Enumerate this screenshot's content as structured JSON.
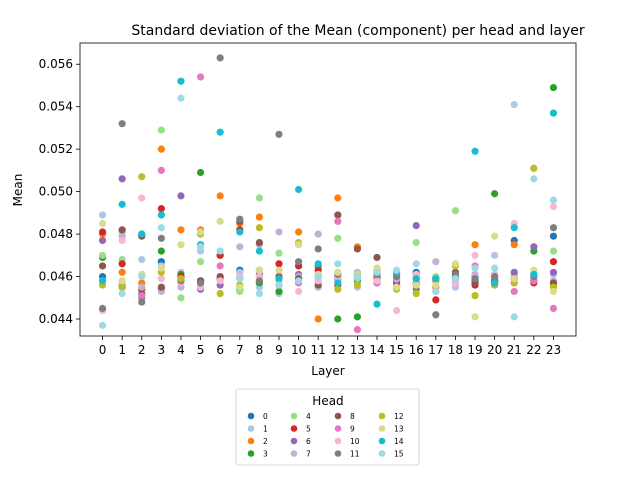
{
  "chart_data": {
    "type": "scatter",
    "title": "Standard deviation of the Mean (component) per head and layer",
    "xlabel": "Layer",
    "ylabel": "Mean",
    "x": [
      0,
      1,
      2,
      3,
      4,
      5,
      6,
      7,
      8,
      9,
      10,
      11,
      12,
      13,
      14,
      15,
      16,
      17,
      18,
      19,
      20,
      21,
      22,
      23
    ],
    "ylim": [
      0.0432,
      0.057
    ],
    "yticks": [
      0.044,
      0.046,
      0.048,
      0.05,
      0.052,
      0.054,
      0.056
    ],
    "ytick_labels": [
      "0.044",
      "0.046",
      "0.048",
      "0.050",
      "0.052",
      "0.054",
      "0.056"
    ],
    "grid": false,
    "legend": {
      "title": "Head",
      "placement": "below-center",
      "columns": 4
    },
    "series": [
      {
        "name": "0",
        "color": "#1f77b4",
        "values": [
          0.046,
          0.0455,
          0.048,
          0.0467,
          0.0458,
          0.0457,
          0.0459,
          0.0463,
          0.0457,
          0.0456,
          0.0459,
          0.0455,
          0.0459,
          0.0458,
          0.0459,
          0.0457,
          0.0462,
          0.0459,
          0.0459,
          0.0458,
          0.0457,
          0.0477,
          0.0461,
          0.0479
        ]
      },
      {
        "name": "1",
        "color": "#aec7e8",
        "values": [
          0.0489,
          0.0481,
          0.0468,
          0.0465,
          0.0462,
          0.0472,
          0.047,
          0.0462,
          0.0455,
          0.0452,
          0.0458,
          0.0455,
          0.0459,
          0.0455,
          0.0461,
          0.0456,
          0.0459,
          0.0453,
          0.0455,
          0.0461,
          0.047,
          0.0541,
          0.046,
          0.0461
        ]
      },
      {
        "name": "2",
        "color": "#ff7f0e",
        "values": [
          0.048,
          0.0462,
          0.0457,
          0.052,
          0.0482,
          0.0482,
          0.0498,
          0.0485,
          0.0488,
          0.0466,
          0.0481,
          0.044,
          0.0497,
          0.0474,
          0.0461,
          0.0455,
          0.0459,
          0.0455,
          0.0459,
          0.0475,
          0.0456,
          0.0475,
          0.0459,
          0.0456
        ]
      },
      {
        "name": "3",
        "color": "#2ca02c",
        "values": [
          0.0469,
          0.0455,
          0.0452,
          0.0472,
          0.0461,
          0.0509,
          0.0459,
          0.0454,
          0.0457,
          0.0453,
          0.0459,
          0.0465,
          0.044,
          0.0441,
          0.046,
          0.0461,
          0.0457,
          0.0459,
          0.046,
          0.0457,
          0.0499,
          0.0459,
          0.0472,
          0.0549
        ]
      },
      {
        "name": "4",
        "color": "#98df8a",
        "values": [
          0.047,
          0.0468,
          0.0461,
          0.0529,
          0.045,
          0.0467,
          0.0459,
          0.0453,
          0.0497,
          0.0471,
          0.0459,
          0.0458,
          0.0478,
          0.0459,
          0.0461,
          0.0459,
          0.0476,
          0.046,
          0.0491,
          0.0459,
          0.0459,
          0.0461,
          0.0459,
          0.0472
        ]
      },
      {
        "name": "5",
        "color": "#d62728",
        "values": [
          0.0481,
          0.0466,
          0.0454,
          0.0492,
          0.046,
          0.0458,
          0.047,
          0.0482,
          0.046,
          0.0466,
          0.0465,
          0.0463,
          0.0456,
          0.046,
          0.0458,
          0.0457,
          0.0456,
          0.0449,
          0.0457,
          0.0456,
          0.0458,
          0.0459,
          0.0457,
          0.0467
        ]
      },
      {
        "name": "6",
        "color": "#9467bd",
        "values": [
          0.0477,
          0.0506,
          0.045,
          0.0454,
          0.0498,
          0.0454,
          0.0456,
          0.0459,
          0.0461,
          0.046,
          0.0461,
          0.046,
          0.046,
          0.0461,
          0.0457,
          0.0458,
          0.0484,
          0.0459,
          0.046,
          0.046,
          0.046,
          0.0462,
          0.0474,
          0.0462
        ]
      },
      {
        "name": "7",
        "color": "#c5b0d5",
        "values": [
          0.0458,
          0.0479,
          0.0455,
          0.0453,
          0.0455,
          0.0457,
          0.046,
          0.0474,
          0.0475,
          0.0481,
          0.046,
          0.048,
          0.0458,
          0.0462,
          0.0461,
          0.0459,
          0.0461,
          0.0467,
          0.0461,
          0.0461,
          0.0461,
          0.0457,
          0.0458,
          0.0458
        ]
      },
      {
        "name": "8",
        "color": "#8c564b",
        "values": [
          0.0465,
          0.0482,
          0.0479,
          0.0455,
          0.0459,
          0.0458,
          0.046,
          0.0486,
          0.0476,
          0.046,
          0.0459,
          0.0456,
          0.0489,
          0.0473,
          0.0469,
          0.046,
          0.0461,
          0.0458,
          0.0462,
          0.0457,
          0.0458,
          0.0459,
          0.0458,
          0.0457
        ]
      },
      {
        "name": "9",
        "color": "#e377c2",
        "values": [
          0.0444,
          0.0456,
          0.0451,
          0.051,
          0.0459,
          0.0554,
          0.0465,
          0.046,
          0.0463,
          0.0459,
          0.0457,
          0.0461,
          0.0486,
          0.0435,
          0.0457,
          0.0461,
          0.0457,
          0.0459,
          0.0457,
          0.0465,
          0.046,
          0.0453,
          0.0458,
          0.0445
        ]
      },
      {
        "name": "10",
        "color": "#f7b6d2",
        "values": [
          0.0444,
          0.0477,
          0.0497,
          0.0459,
          0.0457,
          0.0455,
          0.0458,
          0.046,
          0.046,
          0.0458,
          0.0453,
          0.0458,
          0.046,
          0.046,
          0.0458,
          0.0444,
          0.0461,
          0.0459,
          0.0457,
          0.047,
          0.0461,
          0.0485,
          0.046,
          0.0493
        ]
      },
      {
        "name": "11",
        "color": "#7f7f7f",
        "values": [
          0.0445,
          0.0532,
          0.0448,
          0.0478,
          0.0458,
          0.0457,
          0.0563,
          0.0487,
          0.0458,
          0.0527,
          0.0467,
          0.0473,
          0.0461,
          0.0461,
          0.0461,
          0.046,
          0.0454,
          0.0442,
          0.0461,
          0.0459,
          0.046,
          0.0459,
          0.046,
          0.0483
        ]
      },
      {
        "name": "12",
        "color": "#bcbd22",
        "values": [
          0.0456,
          0.0455,
          0.0507,
          0.0462,
          0.0459,
          0.048,
          0.0452,
          0.0456,
          0.0483,
          0.0456,
          0.0476,
          0.0461,
          0.0454,
          0.0456,
          0.0463,
          0.0454,
          0.0452,
          0.0458,
          0.0465,
          0.0451,
          0.0456,
          0.0457,
          0.0511,
          0.0455
        ]
      },
      {
        "name": "13",
        "color": "#dbdb8d",
        "values": [
          0.0485,
          0.0458,
          0.0461,
          0.0464,
          0.0475,
          0.0481,
          0.0486,
          0.0455,
          0.0463,
          0.0463,
          0.0475,
          0.0461,
          0.0462,
          0.0461,
          0.0464,
          0.0455,
          0.0456,
          0.0456,
          0.0466,
          0.0441,
          0.0479,
          0.0459,
          0.0463,
          0.0453
        ]
      },
      {
        "name": "14",
        "color": "#17becf",
        "values": [
          0.0458,
          0.0494,
          0.048,
          0.0489,
          0.0552,
          0.0475,
          0.0528,
          0.0481,
          0.0472,
          0.0459,
          0.0501,
          0.0466,
          0.0457,
          0.046,
          0.0447,
          0.0462,
          0.0459,
          0.0459,
          0.0459,
          0.0519,
          0.0457,
          0.0483,
          0.0461,
          0.0537
        ]
      },
      {
        "name": "15",
        "color": "#9edae5",
        "values": [
          0.0437,
          0.0452,
          0.046,
          0.0483,
          0.0544,
          0.0474,
          0.0472,
          0.0459,
          0.0452,
          0.0456,
          0.0458,
          0.046,
          0.0466,
          0.046,
          0.0462,
          0.0463,
          0.0466,
          0.0453,
          0.0459,
          0.0464,
          0.0464,
          0.0441,
          0.0506,
          0.0496
        ]
      }
    ]
  }
}
